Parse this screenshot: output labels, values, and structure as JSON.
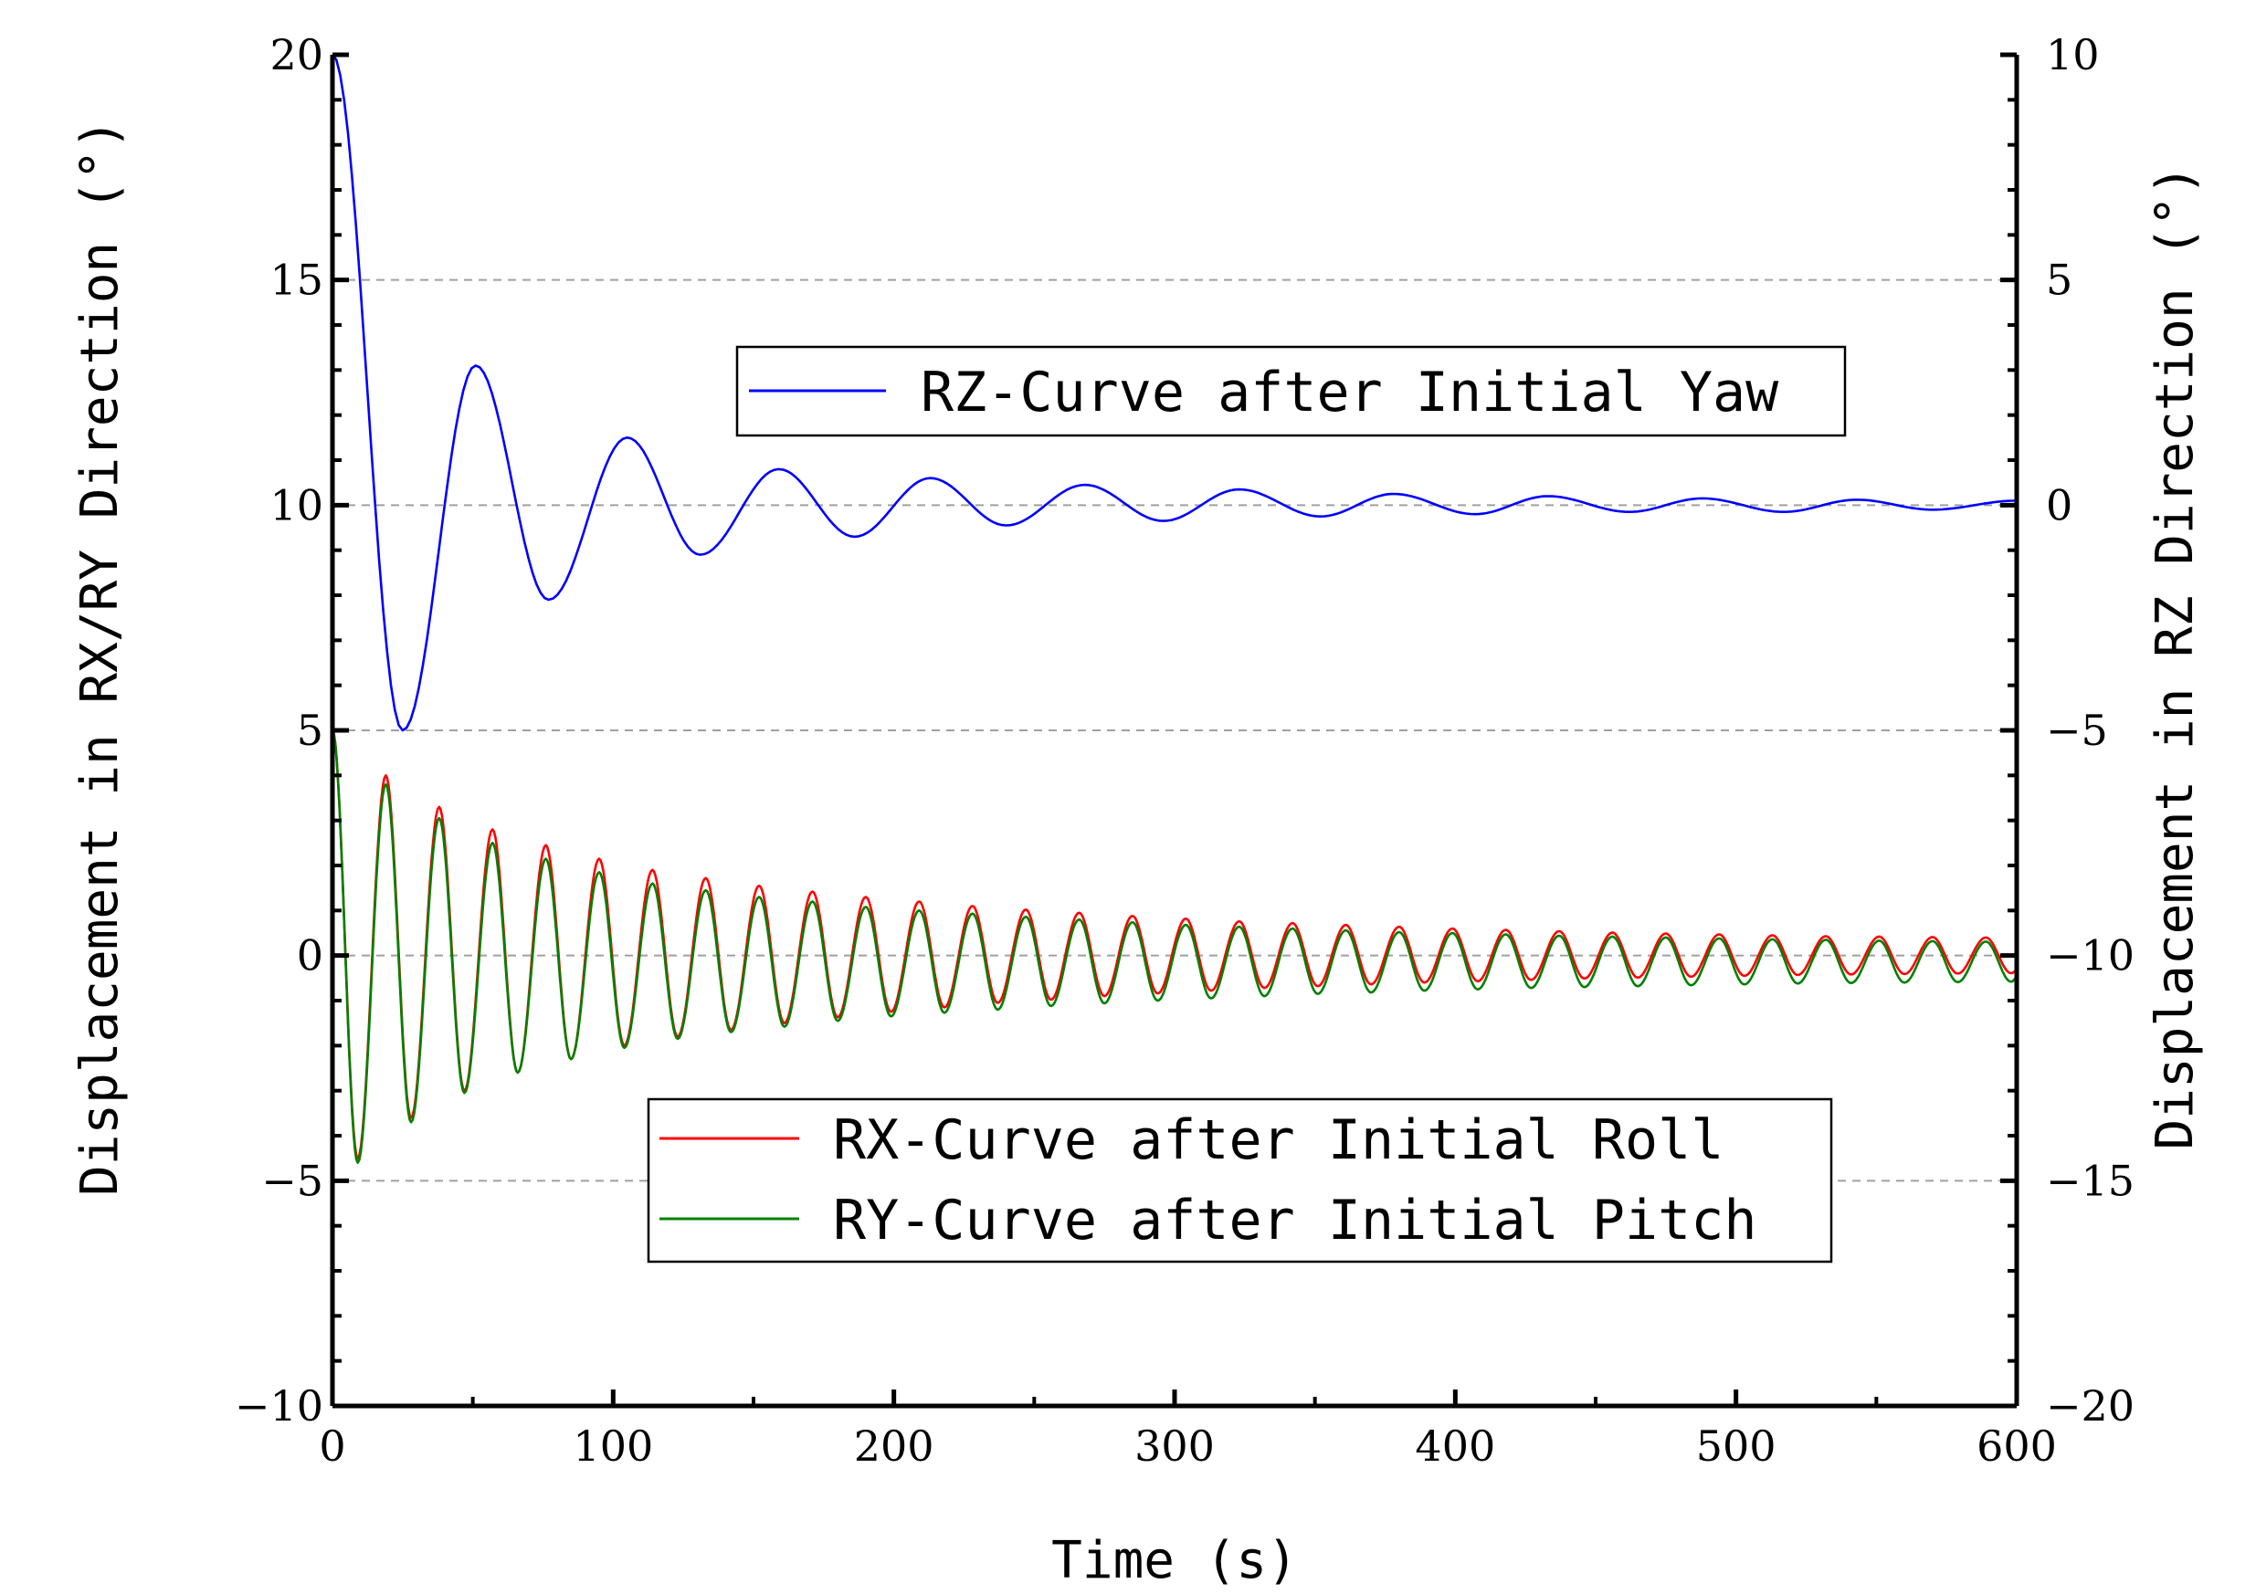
{
  "chart_data": {
    "type": "line",
    "title": "",
    "xlabel": "Time (s)",
    "ylabel_left": "Displacement in RX/RY Direction (°)",
    "ylabel_right": "Displacement in RZ Direction (°)",
    "xlim": [
      0,
      600
    ],
    "ylim_left": [
      -10,
      20
    ],
    "ylim_right": [
      -20,
      10
    ],
    "xticks": [
      "0",
      "100",
      "200",
      "300",
      "400",
      "500",
      "600"
    ],
    "yticks_left": [
      "−10",
      "−5",
      "0",
      "5",
      "10",
      "15",
      "20"
    ],
    "yticks_right": [
      "−20",
      "−15",
      "−10",
      "−5",
      "0",
      "5",
      "10"
    ],
    "grid": "horizontal dashed",
    "series": [
      {
        "name": "RZ-Curve after Initial Yaw",
        "axis": "right",
        "color": "#0000ff",
        "model": "damped cosine",
        "x": [
          0,
          25,
          51,
          77,
          105,
          131,
          159,
          186,
          213,
          240,
          268,
          296,
          323,
          352,
          378,
          407,
          433,
          462,
          488,
          517,
          543,
          570,
          600
        ],
        "y": [
          10,
          -5,
          3.1,
          -2.1,
          1.5,
          -1.1,
          0.8,
          -0.7,
          0.6,
          -0.45,
          0.45,
          -0.35,
          0.35,
          -0.25,
          0.25,
          -0.2,
          0.2,
          -0.15,
          0.15,
          -0.15,
          0.12,
          -0.1,
          0.1
        ]
      },
      {
        "name": "RX-Curve after Initial Roll",
        "axis": "left",
        "color": "#ff0000",
        "model": "damped cosine with offset",
        "x": [
          0,
          9,
          19,
          28,
          38,
          47,
          57,
          66,
          76,
          85,
          95,
          104,
          114,
          123,
          133,
          142,
          152,
          161,
          171,
          180,
          190,
          199,
          209,
          218,
          228,
          237,
          247,
          256,
          266,
          275,
          285,
          294,
          304,
          313,
          323,
          332,
          342,
          351,
          361,
          370,
          380,
          389,
          399,
          408,
          418,
          427,
          437,
          446,
          456,
          465,
          475,
          484,
          494,
          503,
          513,
          522,
          532,
          541,
          551,
          560,
          570,
          579,
          589,
          598
        ],
        "y": [
          5,
          -4.5,
          4,
          -3.6,
          3.3,
          -3,
          2.8,
          -2.6,
          2.45,
          -2.3,
          2.15,
          -2,
          1.9,
          -1.8,
          1.72,
          -1.65,
          1.55,
          -1.5,
          1.42,
          -1.37,
          1.3,
          -1.25,
          1.2,
          -1.15,
          1.1,
          -1.05,
          1.02,
          -0.98,
          0.95,
          -0.9,
          0.88,
          -0.84,
          0.82,
          -0.78,
          0.76,
          -0.72,
          0.72,
          -0.68,
          0.68,
          -0.64,
          0.64,
          -0.6,
          0.6,
          -0.57,
          0.57,
          -0.54,
          0.54,
          -0.51,
          0.51,
          -0.49,
          0.49,
          -0.47,
          0.47,
          -0.45,
          0.45,
          -0.43,
          0.43,
          -0.42,
          0.42,
          -0.41,
          0.41,
          -0.4,
          0.4,
          -0.39
        ]
      },
      {
        "name": "RY-Curve after Initial Pitch",
        "axis": "left",
        "color": "#008000",
        "model": "damped cosine with offset",
        "x": [
          0,
          9,
          19,
          28,
          38,
          47,
          57,
          66,
          76,
          85,
          95,
          104,
          114,
          123,
          133,
          142,
          152,
          161,
          171,
          180,
          190,
          199,
          209,
          218,
          228,
          237,
          247,
          256,
          266,
          275,
          285,
          294,
          304,
          313,
          323,
          332,
          342,
          351,
          361,
          370,
          380,
          389,
          399,
          408,
          418,
          427,
          437,
          446,
          456,
          465,
          475,
          484,
          494,
          503,
          513,
          522,
          532,
          541,
          551,
          560,
          570,
          579,
          589,
          598
        ],
        "y": [
          5,
          -4.6,
          3.8,
          -3.7,
          3.05,
          -3.05,
          2.5,
          -2.6,
          2.15,
          -2.3,
          1.85,
          -2.05,
          1.6,
          -1.85,
          1.45,
          -1.7,
          1.3,
          -1.58,
          1.2,
          -1.45,
          1.08,
          -1.35,
          1,
          -1.27,
          0.93,
          -1.2,
          0.86,
          -1.12,
          0.8,
          -1.06,
          0.74,
          -1,
          0.68,
          -0.95,
          0.64,
          -0.9,
          0.6,
          -0.85,
          0.56,
          -0.82,
          0.52,
          -0.78,
          0.5,
          -0.75,
          0.47,
          -0.72,
          0.44,
          -0.7,
          0.42,
          -0.68,
          0.4,
          -0.66,
          0.38,
          -0.64,
          0.36,
          -0.62,
          0.35,
          -0.61,
          0.33,
          -0.6,
          0.32,
          -0.59,
          0.31,
          -0.58
        ]
      }
    ],
    "legends": [
      {
        "entries": [
          "RZ-Curve after Initial Yaw"
        ],
        "placement": "upper-center"
      },
      {
        "entries": [
          "RX-Curve after Initial Roll",
          "RY-Curve after Initial Pitch"
        ],
        "placement": "lower-center"
      }
    ]
  },
  "colors": {
    "rz": "#0000ff",
    "rx": "#ff0000",
    "ry": "#008000",
    "grid": "#a0a0a0"
  }
}
